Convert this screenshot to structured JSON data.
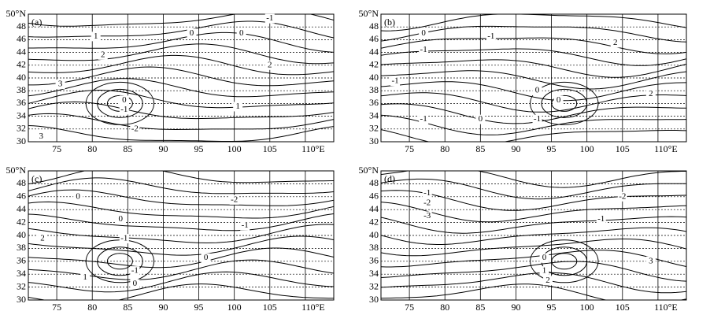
{
  "xlim": [
    71,
    114
  ],
  "ylim": [
    30,
    50
  ],
  "xticks": [
    75,
    80,
    85,
    90,
    95,
    100,
    105,
    {
      "value": 110,
      "label": "110°E"
    }
  ],
  "yticks": [
    30,
    32,
    34,
    36,
    38,
    40,
    42,
    44,
    46,
    48,
    {
      "value": 50,
      "label": "50°N"
    }
  ],
  "panels": [
    {
      "label": "(a)",
      "contour_labels": [
        {
          "text": "-1",
          "lon": 105,
          "lat": 49.3
        },
        {
          "text": "0",
          "lon": 94,
          "lat": 47
        },
        {
          "text": "0",
          "lon": 101,
          "lat": 47
        },
        {
          "text": "1",
          "lon": 80.5,
          "lat": 46.5
        },
        {
          "text": "2",
          "lon": 81.5,
          "lat": 43.6
        },
        {
          "text": "2",
          "lon": 105,
          "lat": 42
        },
        {
          "text": "3",
          "lon": 75.5,
          "lat": 39
        },
        {
          "text": "0",
          "lon": 84.5,
          "lat": 36.5
        },
        {
          "text": "-1",
          "lon": 84.5,
          "lat": 35
        },
        {
          "text": "-2",
          "lon": 86,
          "lat": 32
        },
        {
          "text": "1",
          "lon": 100.5,
          "lat": 35.5
        },
        {
          "text": "3",
          "lon": 72.8,
          "lat": 30.8
        }
      ]
    },
    {
      "label": "(b)",
      "contour_labels": [
        {
          "text": "0",
          "lon": 77,
          "lat": 47
        },
        {
          "text": "-1",
          "lon": 86.5,
          "lat": 46.5
        },
        {
          "text": "-1",
          "lon": 77,
          "lat": 44.4
        },
        {
          "text": "2",
          "lon": 104,
          "lat": 45.5
        },
        {
          "text": "-1",
          "lon": 73,
          "lat": 39.5
        },
        {
          "text": "0",
          "lon": 93,
          "lat": 38
        },
        {
          "text": "0",
          "lon": 96,
          "lat": 36.5
        },
        {
          "text": "2",
          "lon": 109,
          "lat": 37.5
        },
        {
          "text": "-1",
          "lon": 77,
          "lat": 33.5
        },
        {
          "text": "0",
          "lon": 85,
          "lat": 33.5
        },
        {
          "text": "-1",
          "lon": 93,
          "lat": 33.5
        }
      ]
    },
    {
      "label": "(c)",
      "contour_labels": [
        {
          "text": "0",
          "lon": 78,
          "lat": 46
        },
        {
          "text": "-2",
          "lon": 100,
          "lat": 45.5
        },
        {
          "text": "-1",
          "lon": 101.5,
          "lat": 41.5
        },
        {
          "text": "2",
          "lon": 73,
          "lat": 39.5
        },
        {
          "text": "0",
          "lon": 84,
          "lat": 42.5
        },
        {
          "text": "-1",
          "lon": 84.5,
          "lat": 39.5
        },
        {
          "text": "-1",
          "lon": 86,
          "lat": 34.5
        },
        {
          "text": "0",
          "lon": 96,
          "lat": 36.5
        },
        {
          "text": "1",
          "lon": 79,
          "lat": 33.5
        },
        {
          "text": "0",
          "lon": 86,
          "lat": 32.5
        }
      ]
    },
    {
      "label": "(d)",
      "contour_labels": [
        {
          "text": "-1",
          "lon": 77.5,
          "lat": 46.5
        },
        {
          "text": "-2",
          "lon": 77.5,
          "lat": 45
        },
        {
          "text": "-3",
          "lon": 77.5,
          "lat": 43
        },
        {
          "text": "-2",
          "lon": 105,
          "lat": 46
        },
        {
          "text": "-1",
          "lon": 102,
          "lat": 42.5
        },
        {
          "text": "0",
          "lon": 94,
          "lat": 36.5
        },
        {
          "text": "1",
          "lon": 94,
          "lat": 34.5
        },
        {
          "text": "2",
          "lon": 94.5,
          "lat": 33
        },
        {
          "text": "3",
          "lon": 109,
          "lat": 36
        }
      ]
    }
  ]
}
